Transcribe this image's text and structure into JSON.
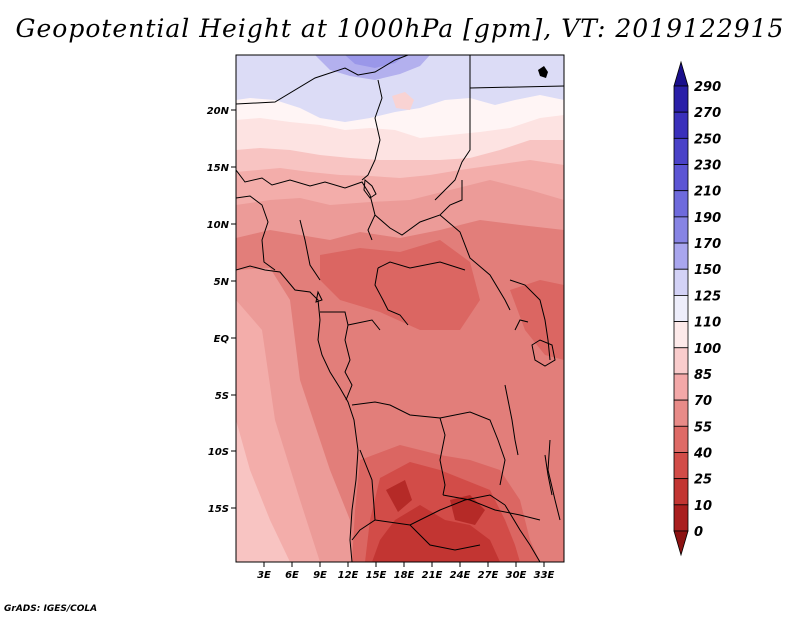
{
  "title": "Geopotential Height at 1000hPa [gpm], VT: 2019122915",
  "footer": "GrADS: IGES/COLA",
  "variable": "Geopotential Height",
  "level": "1000hPa",
  "units": "gpm",
  "valid_time": "2019122915",
  "lat_ticks": [
    "20N",
    "15N",
    "10N",
    "5N",
    "EQ",
    "5S",
    "10S",
    "15S"
  ],
  "lon_ticks": [
    "3E",
    "6E",
    "9E",
    "12E",
    "15E",
    "18E",
    "21E",
    "24E",
    "27E",
    "30E",
    "33E"
  ],
  "colorbar": {
    "labels": [
      "290",
      "270",
      "250",
      "230",
      "210",
      "190",
      "170",
      "150",
      "125",
      "110",
      "100",
      "85",
      "70",
      "55",
      "40",
      "25",
      "10",
      "0"
    ],
    "colors": [
      "#1a0f8c",
      "#2a1fa8",
      "#3a30bb",
      "#4a42c8",
      "#5c55d4",
      "#6e6adc",
      "#8784e4",
      "#a9a6ee",
      "#d3d2f6",
      "#eeeefb",
      "#fdeaea",
      "#f9cccc",
      "#f3a8a8",
      "#e88b88",
      "#de6a66",
      "#d24c48",
      "#c23532",
      "#a91e1e",
      "#8c1212"
    ]
  }
}
